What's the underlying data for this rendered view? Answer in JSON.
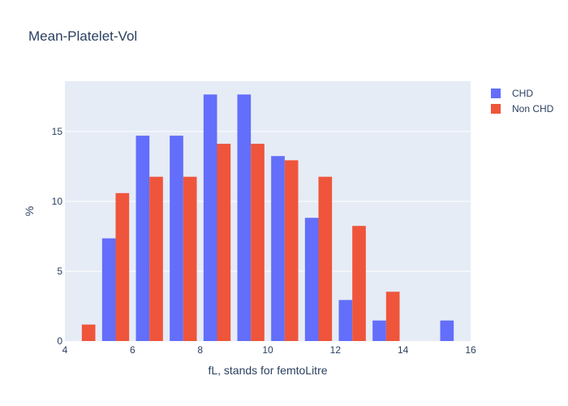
{
  "chart_data": {
    "type": "bar",
    "title": "Mean-Platelet-Vol",
    "xlabel": "fL, stands for femtoLitre",
    "ylabel": "%",
    "xlim": [
      4,
      16
    ],
    "ylim": [
      0,
      18.6
    ],
    "x_ticks": [
      4,
      6,
      8,
      10,
      12,
      14,
      16
    ],
    "y_ticks": [
      0,
      5,
      10,
      15
    ],
    "x": [
      4.5,
      5.5,
      6.5,
      7.5,
      8.5,
      9.5,
      10.5,
      11.5,
      12.5,
      13.5,
      14.5,
      15.5
    ],
    "series": [
      {
        "name": "CHD",
        "color": "#636efa",
        "values": [
          0,
          7.35,
          14.7,
          14.7,
          17.65,
          17.65,
          13.24,
          8.82,
          2.94,
          1.47,
          0,
          1.47
        ]
      },
      {
        "name": "Non CHD",
        "color": "#ef553b",
        "values": [
          1.18,
          10.59,
          11.76,
          11.76,
          14.12,
          14.12,
          12.94,
          11.76,
          8.24,
          3.53,
          0,
          0
        ]
      }
    ],
    "grid": true,
    "legend_position": "top-right",
    "plot_background": "#e5ecf6"
  }
}
